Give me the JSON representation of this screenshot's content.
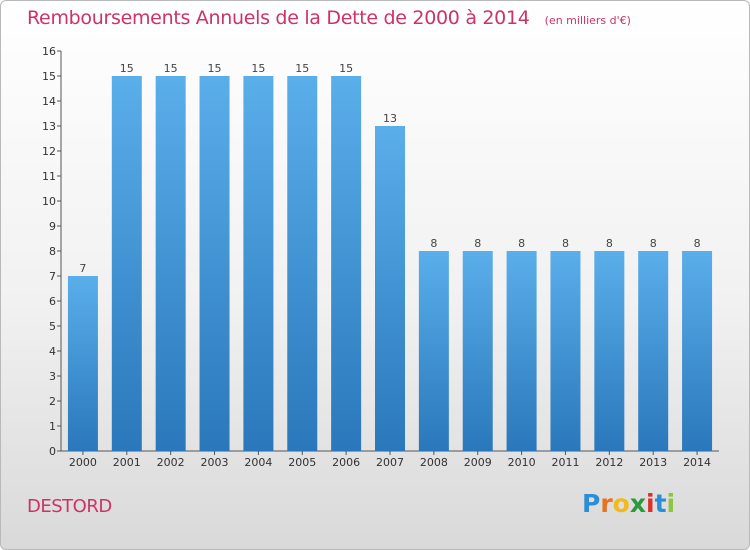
{
  "chart_data": {
    "type": "bar",
    "title": "Remboursements Annuels de la Dette de 2000 à 2014",
    "subtitle": "(en milliers d'€)",
    "categories": [
      "2000",
      "2001",
      "2002",
      "2003",
      "2004",
      "2005",
      "2006",
      "2007",
      "2008",
      "2009",
      "2010",
      "2011",
      "2012",
      "2013",
      "2014"
    ],
    "values": [
      7,
      15,
      15,
      15,
      15,
      15,
      15,
      13,
      8,
      8,
      8,
      8,
      8,
      8,
      8
    ],
    "ylim": [
      0,
      16
    ],
    "yticks": [
      0,
      1,
      2,
      3,
      4,
      5,
      6,
      7,
      8,
      9,
      10,
      11,
      12,
      13,
      14,
      15,
      16
    ],
    "grid": false,
    "bar_color": "#3d95dc"
  },
  "commune": "DESTORD",
  "logo": {
    "letters": [
      "P",
      "r",
      "o",
      "x",
      "i",
      "t",
      "i"
    ],
    "colors": [
      "#2b8fd8",
      "#e8731e",
      "#f2b91c",
      "#2b9a3c",
      "#d9322b",
      "#2b8fd8",
      "#8cc63f"
    ]
  }
}
